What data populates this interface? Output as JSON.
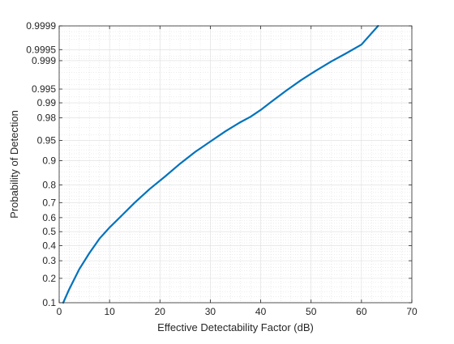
{
  "chart_data": {
    "type": "line",
    "title": "",
    "xlabel": "Effective Detectability Factor (dB)",
    "ylabel": "Probability of Detection",
    "xlim": [
      0,
      70
    ],
    "ylim": [
      0.1,
      0.9999
    ],
    "yscale": "normal-probability",
    "grid": "on (major and minor)",
    "x_ticks": [
      "0",
      "10",
      "20",
      "30",
      "40",
      "50",
      "60",
      "70"
    ],
    "y_ticks": [
      "0.1",
      "0.2",
      "0.3",
      "0.4",
      "0.5",
      "0.6",
      "0.7",
      "0.8",
      "0.9",
      "0.95",
      "0.98",
      "0.99",
      "0.995",
      "0.999",
      "0.9995",
      "0.9999"
    ],
    "series": [
      {
        "color": "#0072BD",
        "x": [
          0.8,
          2,
          4,
          6,
          8,
          10,
          12,
          15,
          18,
          21,
          24,
          27,
          30,
          33,
          36,
          38,
          40,
          42,
          45,
          48,
          51,
          54,
          57,
          60,
          63.3
        ],
        "y": [
          0.1,
          0.15,
          0.25,
          0.35,
          0.45,
          0.53,
          0.6,
          0.7,
          0.78,
          0.84,
          0.89,
          0.925,
          0.948,
          0.965,
          0.976,
          0.981,
          0.986,
          0.9903,
          0.9945,
          0.9969,
          0.9982,
          0.99895,
          0.99937,
          0.99964,
          0.9999
        ]
      }
    ]
  }
}
